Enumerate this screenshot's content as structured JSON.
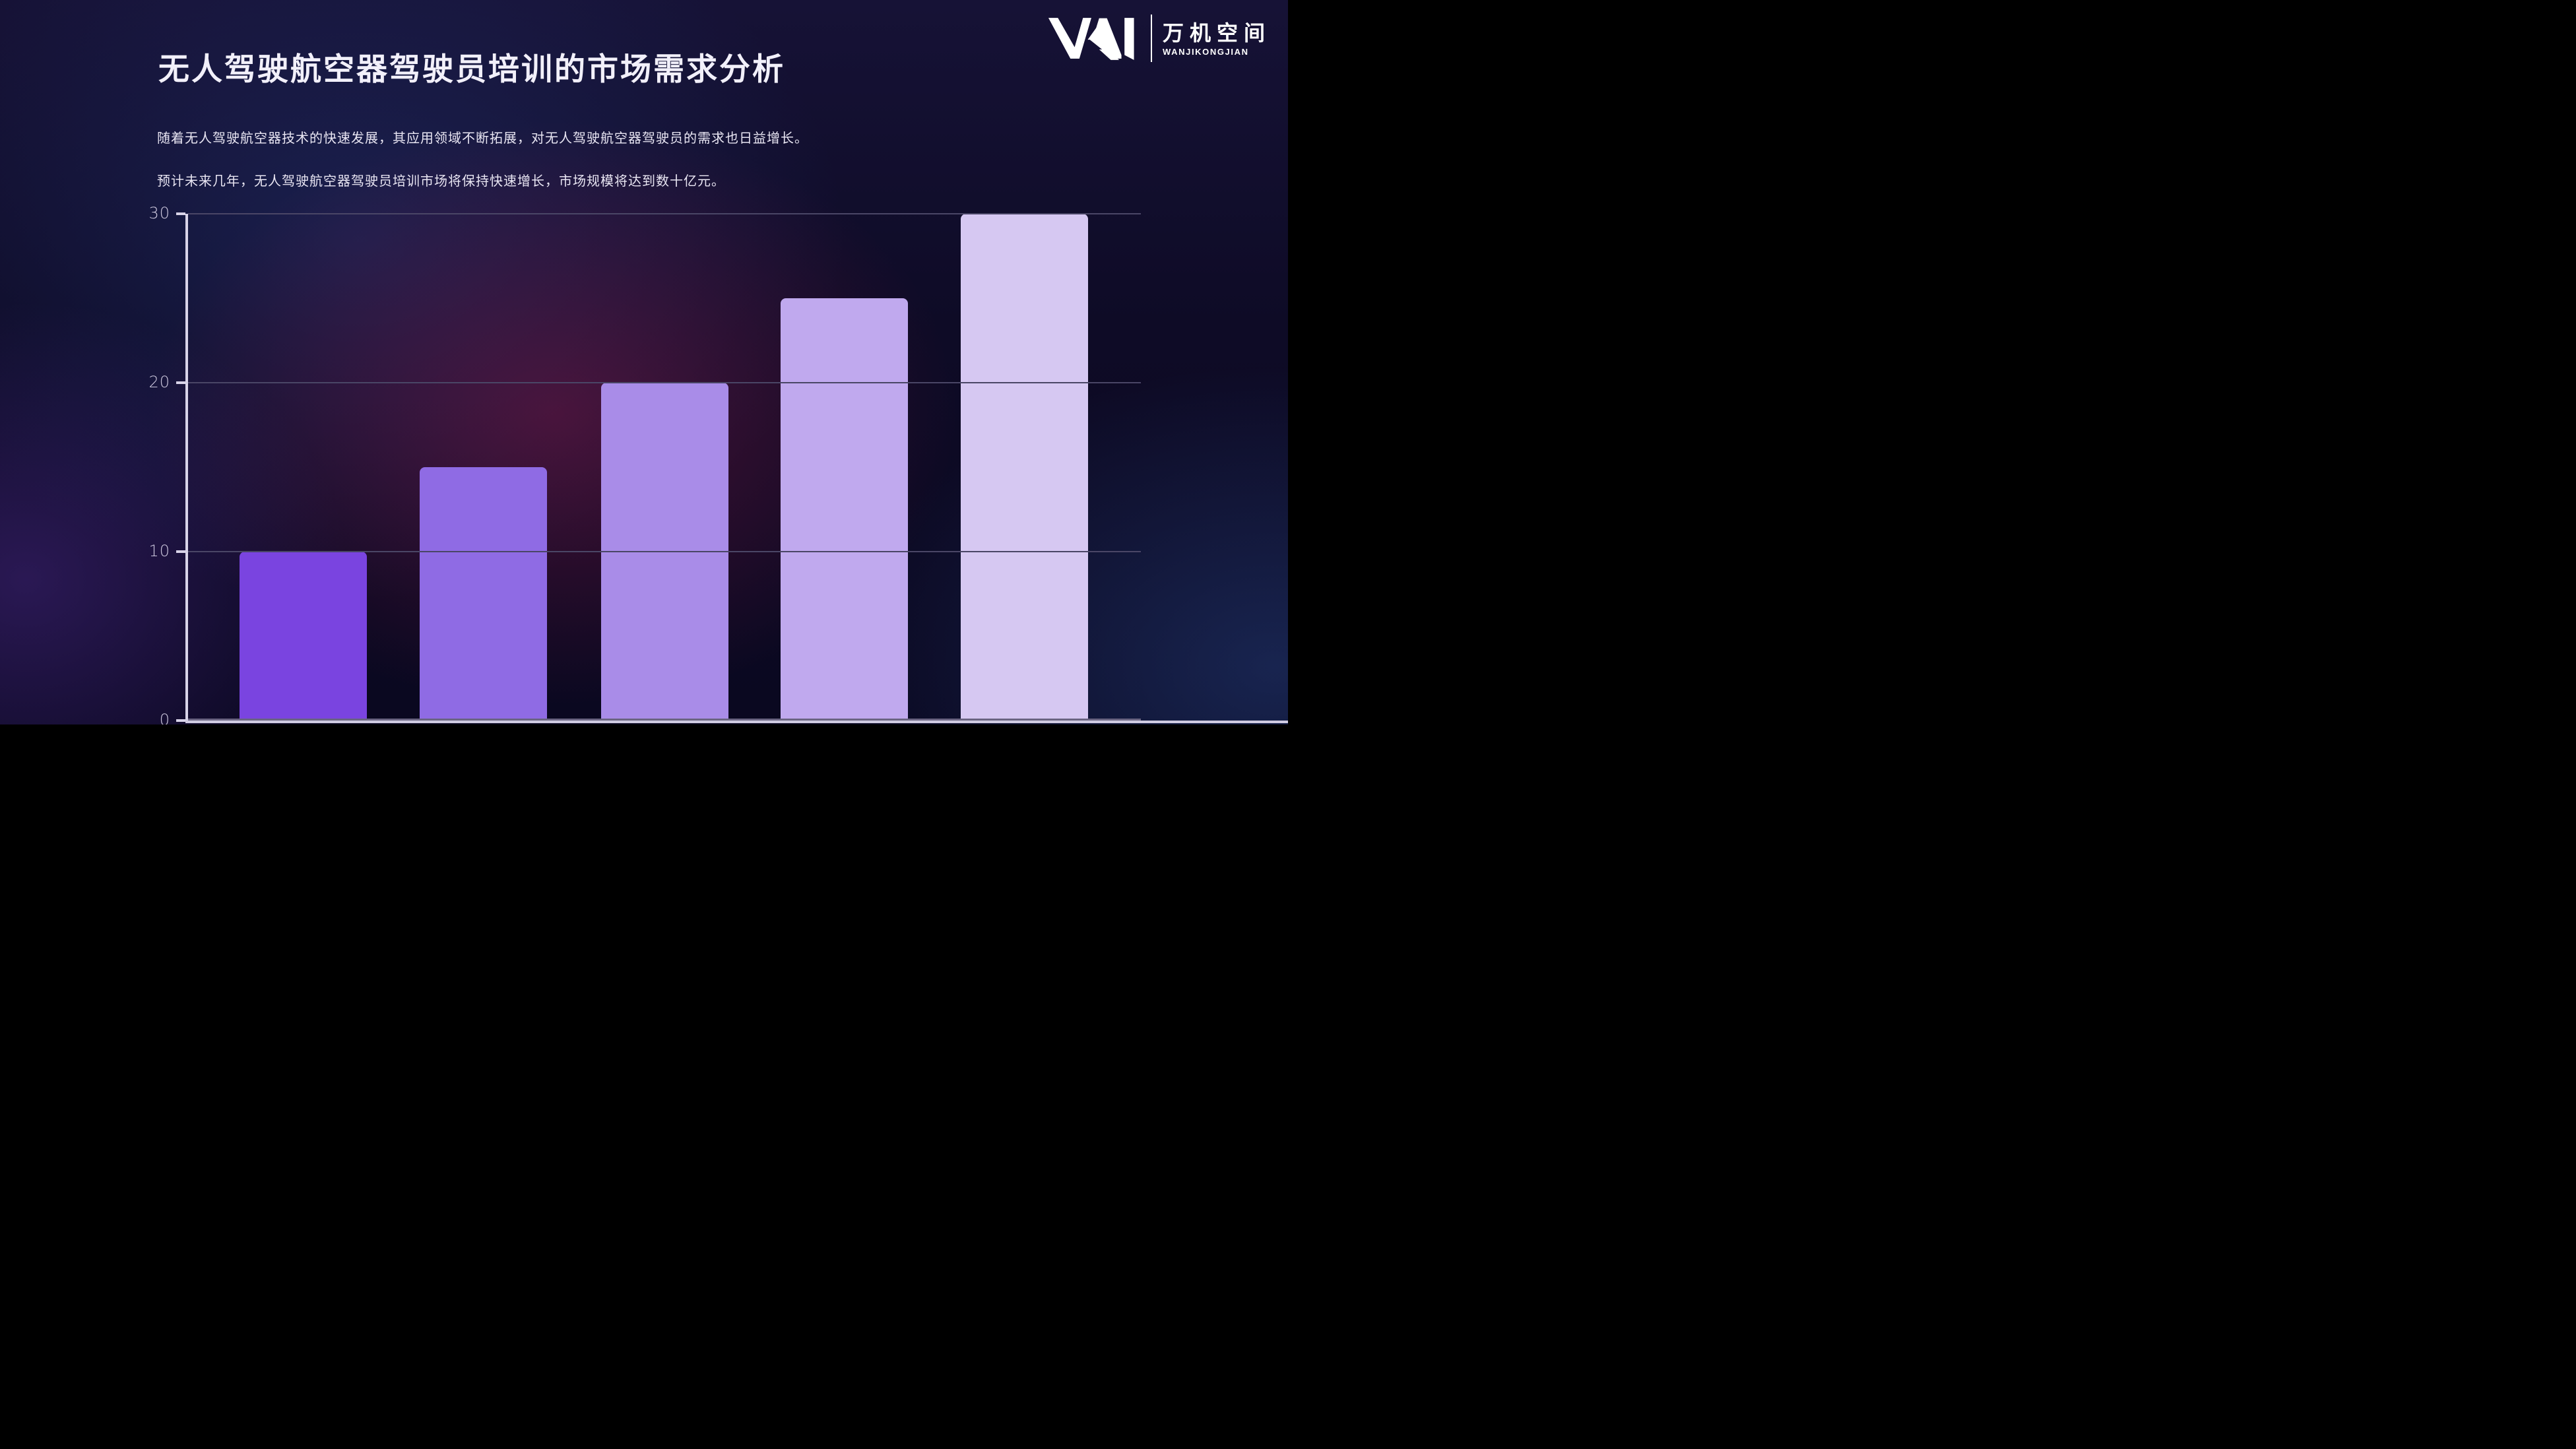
{
  "slide": {
    "title": "无人驾驶航空器驾驶员培训的市场需求分析",
    "paragraphs": [
      "随着无人驾驶航空器技术的快速发展，其应用领域不断拓展，对无人驾驶航空器驾驶员的需求也日益增长。",
      "预计未来几年，无人驾驶航空器驾驶员培训市场将保持快速增长，市场规模将达到数十亿元。"
    ]
  },
  "logo": {
    "name_cn": "万机空间",
    "name_en": "WANJIKONGJIAN"
  },
  "chart_data": {
    "type": "bar",
    "values": [
      10,
      15,
      20,
      25,
      30
    ],
    "y_ticks": [
      0,
      10,
      20,
      30
    ],
    "ylim": [
      0,
      30
    ],
    "grid": true,
    "legend": "none",
    "x_labels_visible": false,
    "bar_colors": [
      "#7a44e0",
      "#8f6be4",
      "#a98ce8",
      "#c0a9ee",
      "#d6c8f2"
    ],
    "axis_color": "#d8d3e8",
    "gridline_color": "#4a4666",
    "tick_label_color": "#ccc7dd",
    "background_color": "#0e0b26"
  }
}
